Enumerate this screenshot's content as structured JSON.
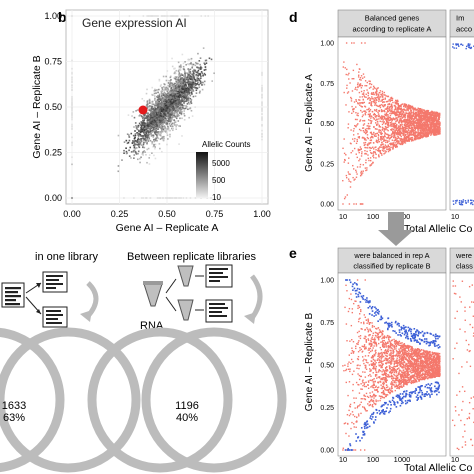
{
  "panel_b": {
    "letter": "b",
    "title": "Gene expression AI",
    "xlabel": "Gene AI – Replicate A",
    "ylabel": "Gene AI – Replicate B",
    "xticks": [
      "0.00",
      "0.25",
      "0.50",
      "0.75",
      "1.00"
    ],
    "yticks": [
      "0.00",
      "0.25",
      "0.50",
      "0.75",
      "1.00"
    ],
    "legend_title": "Allelic Counts",
    "legend_labels": [
      "5000",
      "500",
      "10"
    ],
    "highlight_color": "#e31a1c"
  },
  "panel_c": {
    "left_title": "in one library",
    "right_title": "Between replicate libraries",
    "rna_label": "RNA",
    "left_count": "1633",
    "left_pct": "63%",
    "right_count": "1196",
    "right_pct": "40%"
  },
  "panel_d": {
    "letter": "d",
    "strip_a": "Balanced genes\naccording to replicate A",
    "strip_b": "Im\nacco",
    "ylabel": "Gene AI – Replicate A",
    "xlabel": "Total Allelic Co",
    "yticks": [
      "0.00",
      "0.25",
      "0.50",
      "0.75",
      "1.00"
    ],
    "xticks": [
      "10",
      "100",
      "1000"
    ],
    "xticks_b": [
      "10"
    ]
  },
  "panel_e": {
    "letter": "e",
    "strip_a": "were balanced in rep A\nclassified by replicate B",
    "strip_b": "were\nclass",
    "ylabel": "Gene AI – Replicate B",
    "xlabel": "Total Allelic Co",
    "yticks": [
      "0.00",
      "0.25",
      "0.50",
      "0.75",
      "1.00"
    ],
    "xticks": [
      "10",
      "100",
      "1000"
    ],
    "xticks_b": [
      "10"
    ]
  },
  "colors": {
    "balanced": "#f4786c",
    "imbalanced": "#3c5fd6",
    "arrow": "#9a9a9a",
    "strip_bg": "#d9d9d9",
    "ring": "#bcbcbc"
  }
}
